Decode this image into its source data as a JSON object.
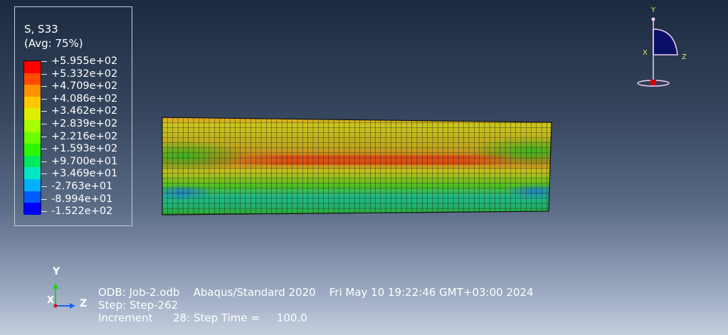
{
  "legend": {
    "title": "S, S33",
    "subtitle": "(Avg: 75%)",
    "colors": [
      "#ff0000",
      "#ff4a00",
      "#ff9100",
      "#ffc800",
      "#ddef00",
      "#a5ff00",
      "#69ff00",
      "#2bf700",
      "#00e85f",
      "#00e8c4",
      "#00b0ff",
      "#005cff",
      "#0000ff"
    ],
    "values": [
      "+5.955e+02",
      "+5.332e+02",
      "+4.709e+02",
      "+4.086e+02",
      "+3.462e+02",
      "+2.839e+02",
      "+2.216e+02",
      "+1.593e+02",
      "+9.700e+01",
      "+3.469e+01",
      "-2.763e+01",
      "-8.994e+01",
      "-1.522e+02"
    ]
  },
  "triad_small": {
    "y": "Y",
    "x": "X",
    "z": "Z"
  },
  "triad_main": {
    "y": "Y",
    "x": "X",
    "z": "Z"
  },
  "info": {
    "odb": "ODB: Job-2.odb",
    "solver": "Abaqus/Standard 2020",
    "date": "Fri May 10 19:22:46 GMT+03:00 2024",
    "step": "Step: Step-262",
    "increment": "Increment      28: Step Time =     100.0"
  }
}
